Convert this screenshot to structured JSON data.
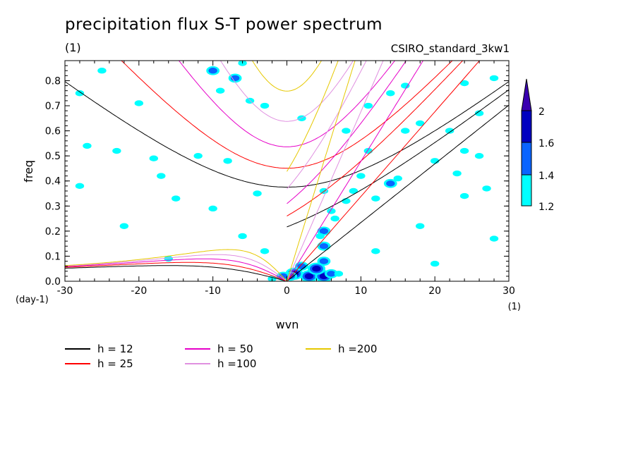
{
  "title": "precipitation flux S-T power spectrum",
  "subtitle_left": "(1)",
  "subtitle_right": "CSIRO_standard_3kw1",
  "chart_data": {
    "type": "heatmap",
    "title": "precipitation flux S-T power spectrum",
    "xlabel": "wvn",
    "ylabel": "freq",
    "x_unit": "(1)",
    "y_unit": "(day-1)",
    "xlim": [
      -30,
      30
    ],
    "ylim": [
      0,
      0.88
    ],
    "xticks": [
      -30,
      -20,
      -10,
      0,
      10,
      20,
      30
    ],
    "yticks": [
      0.0,
      0.1,
      0.2,
      0.3,
      0.4,
      0.5,
      0.6,
      0.7,
      0.8
    ],
    "xtick_labels": [
      "-30",
      "-20",
      "-10",
      "0",
      "10",
      "20",
      "30"
    ],
    "ytick_labels": [
      "0.0",
      "0.1",
      "0.2",
      "0.3",
      "0.4",
      "0.5",
      "0.6",
      "0.7",
      "0.8"
    ],
    "colorbar": {
      "levels": [
        1.2,
        1.4,
        1.6,
        2
      ],
      "labels": [
        "1.2",
        "1.4",
        "1.6",
        "2"
      ],
      "colors": [
        "#00ffff",
        "#0a64ff",
        "#0000c0",
        "#3a00b0"
      ]
    },
    "dispersion_curves": [
      {
        "name": "h = 12",
        "h": 12,
        "color": "#000000"
      },
      {
        "name": "h = 25",
        "h": 25,
        "color": "#ff0000"
      },
      {
        "name": "h = 50",
        "h": 50,
        "color": "#e600c8"
      },
      {
        "name": "h =100",
        "h": 100,
        "color": "#e090e0"
      },
      {
        "name": "h =200",
        "h": 200,
        "color": "#e6c800"
      }
    ],
    "blobs": [
      {
        "x": 3,
        "y": 0.02,
        "level": 3
      },
      {
        "x": 5,
        "y": 0.02,
        "level": 3
      },
      {
        "x": 1,
        "y": 0.03,
        "level": 3
      },
      {
        "x": 6,
        "y": 0.03,
        "level": 2
      },
      {
        "x": 4,
        "y": 0.05,
        "level": 3
      },
      {
        "x": 5,
        "y": 0.08,
        "level": 2
      },
      {
        "x": 2,
        "y": 0.06,
        "level": 2
      },
      {
        "x": 0.5,
        "y": 0.02,
        "level": 2
      },
      {
        "x": -0.5,
        "y": 0.02,
        "level": 2
      },
      {
        "x": -2,
        "y": 0.01,
        "level": 1
      },
      {
        "x": 7,
        "y": 0.03,
        "level": 1
      },
      {
        "x": 5,
        "y": 0.14,
        "level": 2
      },
      {
        "x": 5,
        "y": 0.2,
        "level": 2
      },
      {
        "x": 6.5,
        "y": 0.25,
        "level": 1
      },
      {
        "x": 4.5,
        "y": 0.18,
        "level": 1
      },
      {
        "x": 8,
        "y": 0.32,
        "level": 1
      },
      {
        "x": 12,
        "y": 0.33,
        "level": 1
      },
      {
        "x": 14,
        "y": 0.39,
        "level": 2
      },
      {
        "x": 15,
        "y": 0.41,
        "level": 1
      },
      {
        "x": 10,
        "y": 0.42,
        "level": 1
      },
      {
        "x": 9,
        "y": 0.36,
        "level": 1
      },
      {
        "x": 5,
        "y": 0.36,
        "level": 1
      },
      {
        "x": 6,
        "y": 0.28,
        "level": 1
      },
      {
        "x": 11,
        "y": 0.52,
        "level": 1
      },
      {
        "x": 16,
        "y": 0.6,
        "level": 1
      },
      {
        "x": 18,
        "y": 0.63,
        "level": 1
      },
      {
        "x": 22,
        "y": 0.6,
        "level": 1
      },
      {
        "x": 24,
        "y": 0.52,
        "level": 1
      },
      {
        "x": 23,
        "y": 0.43,
        "level": 1
      },
      {
        "x": 26,
        "y": 0.5,
        "level": 1
      },
      {
        "x": 20,
        "y": 0.48,
        "level": 1
      },
      {
        "x": 27,
        "y": 0.37,
        "level": 1
      },
      {
        "x": 24,
        "y": 0.34,
        "level": 1
      },
      {
        "x": 26,
        "y": 0.67,
        "level": 1
      },
      {
        "x": 28,
        "y": 0.81,
        "level": 1
      },
      {
        "x": 24,
        "y": 0.79,
        "level": 1
      },
      {
        "x": 14,
        "y": 0.75,
        "level": 1
      },
      {
        "x": 11,
        "y": 0.7,
        "level": 1
      },
      {
        "x": 16,
        "y": 0.78,
        "level": 1
      },
      {
        "x": -10,
        "y": 0.84,
        "level": 2
      },
      {
        "x": -7,
        "y": 0.81,
        "level": 2
      },
      {
        "x": -6,
        "y": 0.87,
        "level": 1
      },
      {
        "x": -9,
        "y": 0.76,
        "level": 1
      },
      {
        "x": -5,
        "y": 0.72,
        "level": 1
      },
      {
        "x": -3,
        "y": 0.7,
        "level": 1
      },
      {
        "x": -25,
        "y": 0.84,
        "level": 1
      },
      {
        "x": -28,
        "y": 0.75,
        "level": 1
      },
      {
        "x": -20,
        "y": 0.71,
        "level": 1
      },
      {
        "x": -27,
        "y": 0.54,
        "level": 1
      },
      {
        "x": -23,
        "y": 0.52,
        "level": 1
      },
      {
        "x": -18,
        "y": 0.49,
        "level": 1
      },
      {
        "x": -12,
        "y": 0.5,
        "level": 1
      },
      {
        "x": -8,
        "y": 0.48,
        "level": 1
      },
      {
        "x": -17,
        "y": 0.42,
        "level": 1
      },
      {
        "x": -28,
        "y": 0.38,
        "level": 1
      },
      {
        "x": -15,
        "y": 0.33,
        "level": 1
      },
      {
        "x": -10,
        "y": 0.29,
        "level": 1
      },
      {
        "x": -4,
        "y": 0.35,
        "level": 1
      },
      {
        "x": -3,
        "y": 0.12,
        "level": 1
      },
      {
        "x": -6,
        "y": 0.18,
        "level": 1
      },
      {
        "x": 2,
        "y": 0.65,
        "level": 1
      },
      {
        "x": 8,
        "y": 0.6,
        "level": 1
      },
      {
        "x": 20,
        "y": 0.07,
        "level": 1
      },
      {
        "x": 28,
        "y": 0.17,
        "level": 1
      },
      {
        "x": 12,
        "y": 0.12,
        "level": 1
      },
      {
        "x": -16,
        "y": 0.09,
        "level": 1
      },
      {
        "x": -22,
        "y": 0.22,
        "level": 1
      },
      {
        "x": 18,
        "y": 0.22,
        "level": 1
      }
    ]
  },
  "legend": {
    "items": [
      "h = 12",
      "h = 25",
      "h = 50",
      "h =100",
      "h =200"
    ]
  }
}
